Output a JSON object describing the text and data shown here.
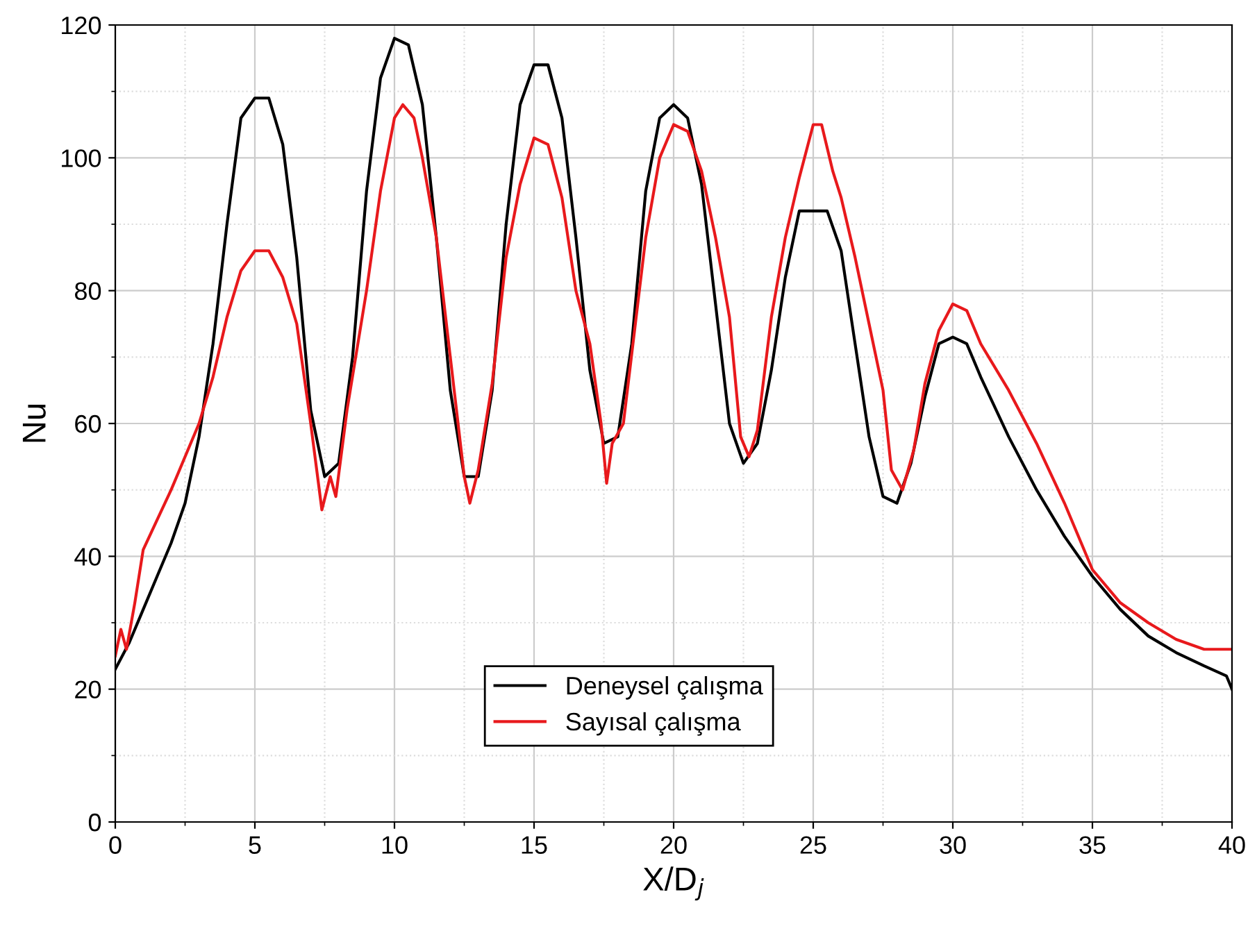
{
  "chart_data": {
    "type": "line",
    "xlabel": "X/D$_{j}$",
    "ylabel": "Nu",
    "xlim": [
      0,
      40
    ],
    "ylim": [
      0,
      120
    ],
    "xticks": [
      0,
      5,
      10,
      15,
      20,
      25,
      30,
      35,
      40
    ],
    "yticks": [
      0,
      20,
      40,
      60,
      80,
      100,
      120
    ],
    "grid": true,
    "legend": "bottom",
    "line_style": "solid",
    "marker": "none",
    "series": [
      {
        "name": "Deneysel çalışma",
        "color": "#000000",
        "x": [
          0,
          0.5,
          1,
          1.5,
          2,
          2.5,
          3,
          3.5,
          4,
          4.5,
          5,
          5.5,
          6,
          6.5,
          7,
          7.5,
          8,
          8.5,
          9,
          9.5,
          10,
          10.5,
          11,
          11.5,
          12,
          12.5,
          13,
          13.5,
          14,
          14.5,
          15,
          15.5,
          16,
          16.5,
          17,
          17.5,
          18,
          18.5,
          19,
          19.5,
          20,
          20.5,
          21,
          21.5,
          22,
          22.5,
          23,
          23.5,
          24,
          24.5,
          25,
          25.5,
          26,
          26.5,
          27,
          27.5,
          28,
          28.5,
          29,
          29.5,
          30,
          30.5,
          31,
          32,
          33,
          34,
          35,
          36,
          37,
          38,
          39,
          39.8,
          40
        ],
        "values": [
          23,
          27,
          32,
          37,
          42,
          48,
          58,
          72,
          90,
          106,
          109,
          109,
          102,
          85,
          62,
          52,
          54,
          70,
          95,
          112,
          118,
          117,
          108,
          88,
          65,
          52,
          52,
          65,
          90,
          108,
          114,
          114,
          106,
          88,
          68,
          57,
          58,
          72,
          95,
          106,
          108,
          106,
          96,
          78,
          60,
          54,
          57,
          68,
          82,
          92,
          92,
          92,
          86,
          72,
          58,
          49,
          48,
          54,
          64,
          72,
          73,
          72,
          67,
          58,
          50,
          43,
          37,
          32,
          28,
          25.5,
          23.5,
          22,
          20
        ]
      },
      {
        "name": "Sayısal çalışma",
        "color": "#e8191c",
        "x": [
          0,
          0.2,
          0.4,
          0.7,
          1,
          2,
          3,
          3.5,
          4,
          4.5,
          5,
          5.5,
          6,
          6.5,
          7,
          7.4,
          7.7,
          7.9,
          8.3,
          9,
          9.5,
          10,
          10.3,
          10.7,
          11,
          11.5,
          12,
          12.5,
          12.7,
          13,
          13.5,
          14,
          14.5,
          15,
          15.5,
          16,
          16.5,
          17,
          17.4,
          17.6,
          17.8,
          18.2,
          19,
          19.5,
          20,
          20.5,
          21,
          21.5,
          22,
          22.4,
          22.7,
          23,
          23.5,
          24,
          24.5,
          25,
          25.3,
          25.7,
          26,
          26.5,
          27,
          27.5,
          27.8,
          28.2,
          28.6,
          29,
          29.5,
          30,
          30.5,
          31,
          32,
          33,
          34,
          35,
          36,
          37,
          38,
          39,
          40
        ],
        "values": [
          25,
          29,
          26,
          33,
          41,
          50,
          60,
          67,
          76,
          83,
          86,
          86,
          82,
          75,
          60,
          47,
          52,
          49,
          62,
          80,
          95,
          106,
          108,
          106,
          100,
          88,
          70,
          52,
          48,
          53,
          66,
          85,
          96,
          103,
          102,
          94,
          80,
          72,
          60,
          51,
          57,
          60,
          88,
          100,
          105,
          104,
          98,
          88,
          76,
          58,
          55,
          59,
          76,
          88,
          97,
          105,
          105,
          98,
          94,
          85,
          75,
          65,
          53,
          50,
          56,
          66,
          74,
          78,
          77,
          72,
          65,
          57,
          48,
          38,
          33,
          30,
          27.5,
          26,
          26
        ]
      }
    ]
  }
}
